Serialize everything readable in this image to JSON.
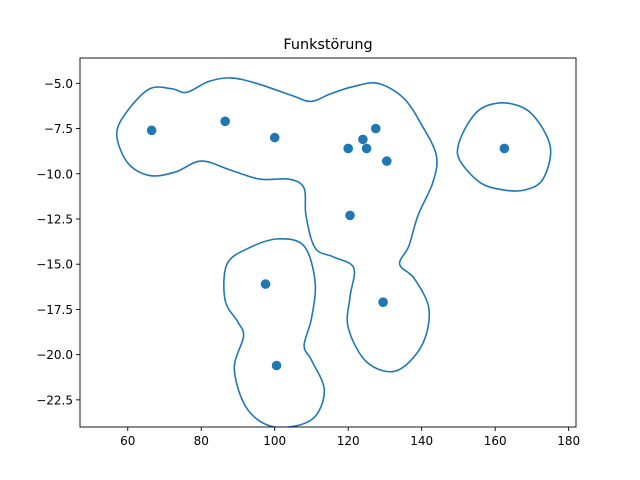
{
  "chart_data": {
    "type": "scatter",
    "title": "Funkstörung",
    "xlabel": "",
    "ylabel": "",
    "xlim": [
      47,
      182
    ],
    "ylim": [
      -24,
      -3.6
    ],
    "xticks": [
      60,
      80,
      100,
      120,
      140,
      160,
      180
    ],
    "xtick_labels": [
      "60",
      "80",
      "100",
      "120",
      "140",
      "160",
      "180"
    ],
    "yticks": [
      -5.0,
      -7.5,
      -10.0,
      -12.5,
      -15.0,
      -17.5,
      -20.0,
      -22.5
    ],
    "ytick_labels": [
      "−5.0",
      "−7.5",
      "−10.0",
      "−12.5",
      "−15.0",
      "−17.5",
      "−20.0",
      "−22.5"
    ],
    "grid": false,
    "colors": {
      "points": "#1f77b4",
      "contour": "#1f77b4"
    },
    "points": [
      {
        "x": 66.5,
        "y": -7.6
      },
      {
        "x": 86.5,
        "y": -7.1
      },
      {
        "x": 100.0,
        "y": -8.0
      },
      {
        "x": 120.0,
        "y": -8.6
      },
      {
        "x": 124.0,
        "y": -8.1
      },
      {
        "x": 125.0,
        "y": -8.6
      },
      {
        "x": 127.5,
        "y": -7.5
      },
      {
        "x": 130.5,
        "y": -9.3
      },
      {
        "x": 120.5,
        "y": -12.3
      },
      {
        "x": 162.5,
        "y": -8.6
      },
      {
        "x": 97.5,
        "y": -16.1
      },
      {
        "x": 129.5,
        "y": -17.1
      },
      {
        "x": 100.5,
        "y": -20.6
      }
    ],
    "contours": [
      [
        [
          60,
          -6.5
        ],
        [
          66,
          -5.3
        ],
        [
          72,
          -5.3
        ],
        [
          76,
          -5.5
        ],
        [
          82,
          -4.9
        ],
        [
          88,
          -4.7
        ],
        [
          95,
          -5.0
        ],
        [
          105,
          -5.7
        ],
        [
          110,
          -6.0
        ],
        [
          115,
          -5.6
        ],
        [
          121,
          -5.2
        ],
        [
          128,
          -5.0
        ],
        [
          135,
          -5.8
        ],
        [
          140,
          -7.3
        ],
        [
          144,
          -9.0
        ],
        [
          143,
          -10.5
        ],
        [
          139,
          -12.3
        ],
        [
          136.5,
          -14.0
        ],
        [
          134,
          -15.0
        ],
        [
          138,
          -15.8
        ],
        [
          142,
          -17.5
        ],
        [
          140,
          -19.5
        ],
        [
          133,
          -20.9
        ],
        [
          125,
          -20.4
        ],
        [
          120,
          -18.5
        ],
        [
          120.5,
          -16.8
        ],
        [
          121.5,
          -15.2
        ],
        [
          116,
          -14.6
        ],
        [
          111,
          -14.1
        ],
        [
          108.5,
          -12.3
        ],
        [
          108,
          -10.8
        ],
        [
          104,
          -10.3
        ],
        [
          96,
          -10.3
        ],
        [
          88,
          -9.8
        ],
        [
          80,
          -9.3
        ],
        [
          73,
          -9.9
        ],
        [
          66,
          -10.1
        ],
        [
          60,
          -9.4
        ],
        [
          57,
          -7.8
        ],
        [
          60,
          -6.5
        ]
      ],
      [
        [
          163.5,
          -6.1
        ],
        [
          170,
          -6.7
        ],
        [
          175,
          -8.5
        ],
        [
          173,
          -10.3
        ],
        [
          168,
          -10.9
        ],
        [
          162.5,
          -10.9
        ],
        [
          156,
          -10.5
        ],
        [
          150.5,
          -9.3
        ],
        [
          150,
          -8.4
        ],
        [
          153,
          -7.1
        ],
        [
          157,
          -6.3
        ],
        [
          163.5,
          -6.1
        ]
      ],
      [
        [
          93,
          -14.1
        ],
        [
          101,
          -13.6
        ],
        [
          108,
          -14.0
        ],
        [
          111,
          -16.0
        ],
        [
          110,
          -18.0
        ],
        [
          108,
          -19.5
        ],
        [
          110,
          -20.3
        ],
        [
          113.5,
          -22.0
        ],
        [
          110,
          -23.6
        ],
        [
          100,
          -24.0
        ],
        [
          92.5,
          -23.0
        ],
        [
          89,
          -20.8
        ],
        [
          91.5,
          -19.0
        ],
        [
          90,
          -18.2
        ],
        [
          86.5,
          -17.0
        ],
        [
          87,
          -15.0
        ],
        [
          93,
          -14.1
        ]
      ]
    ]
  }
}
